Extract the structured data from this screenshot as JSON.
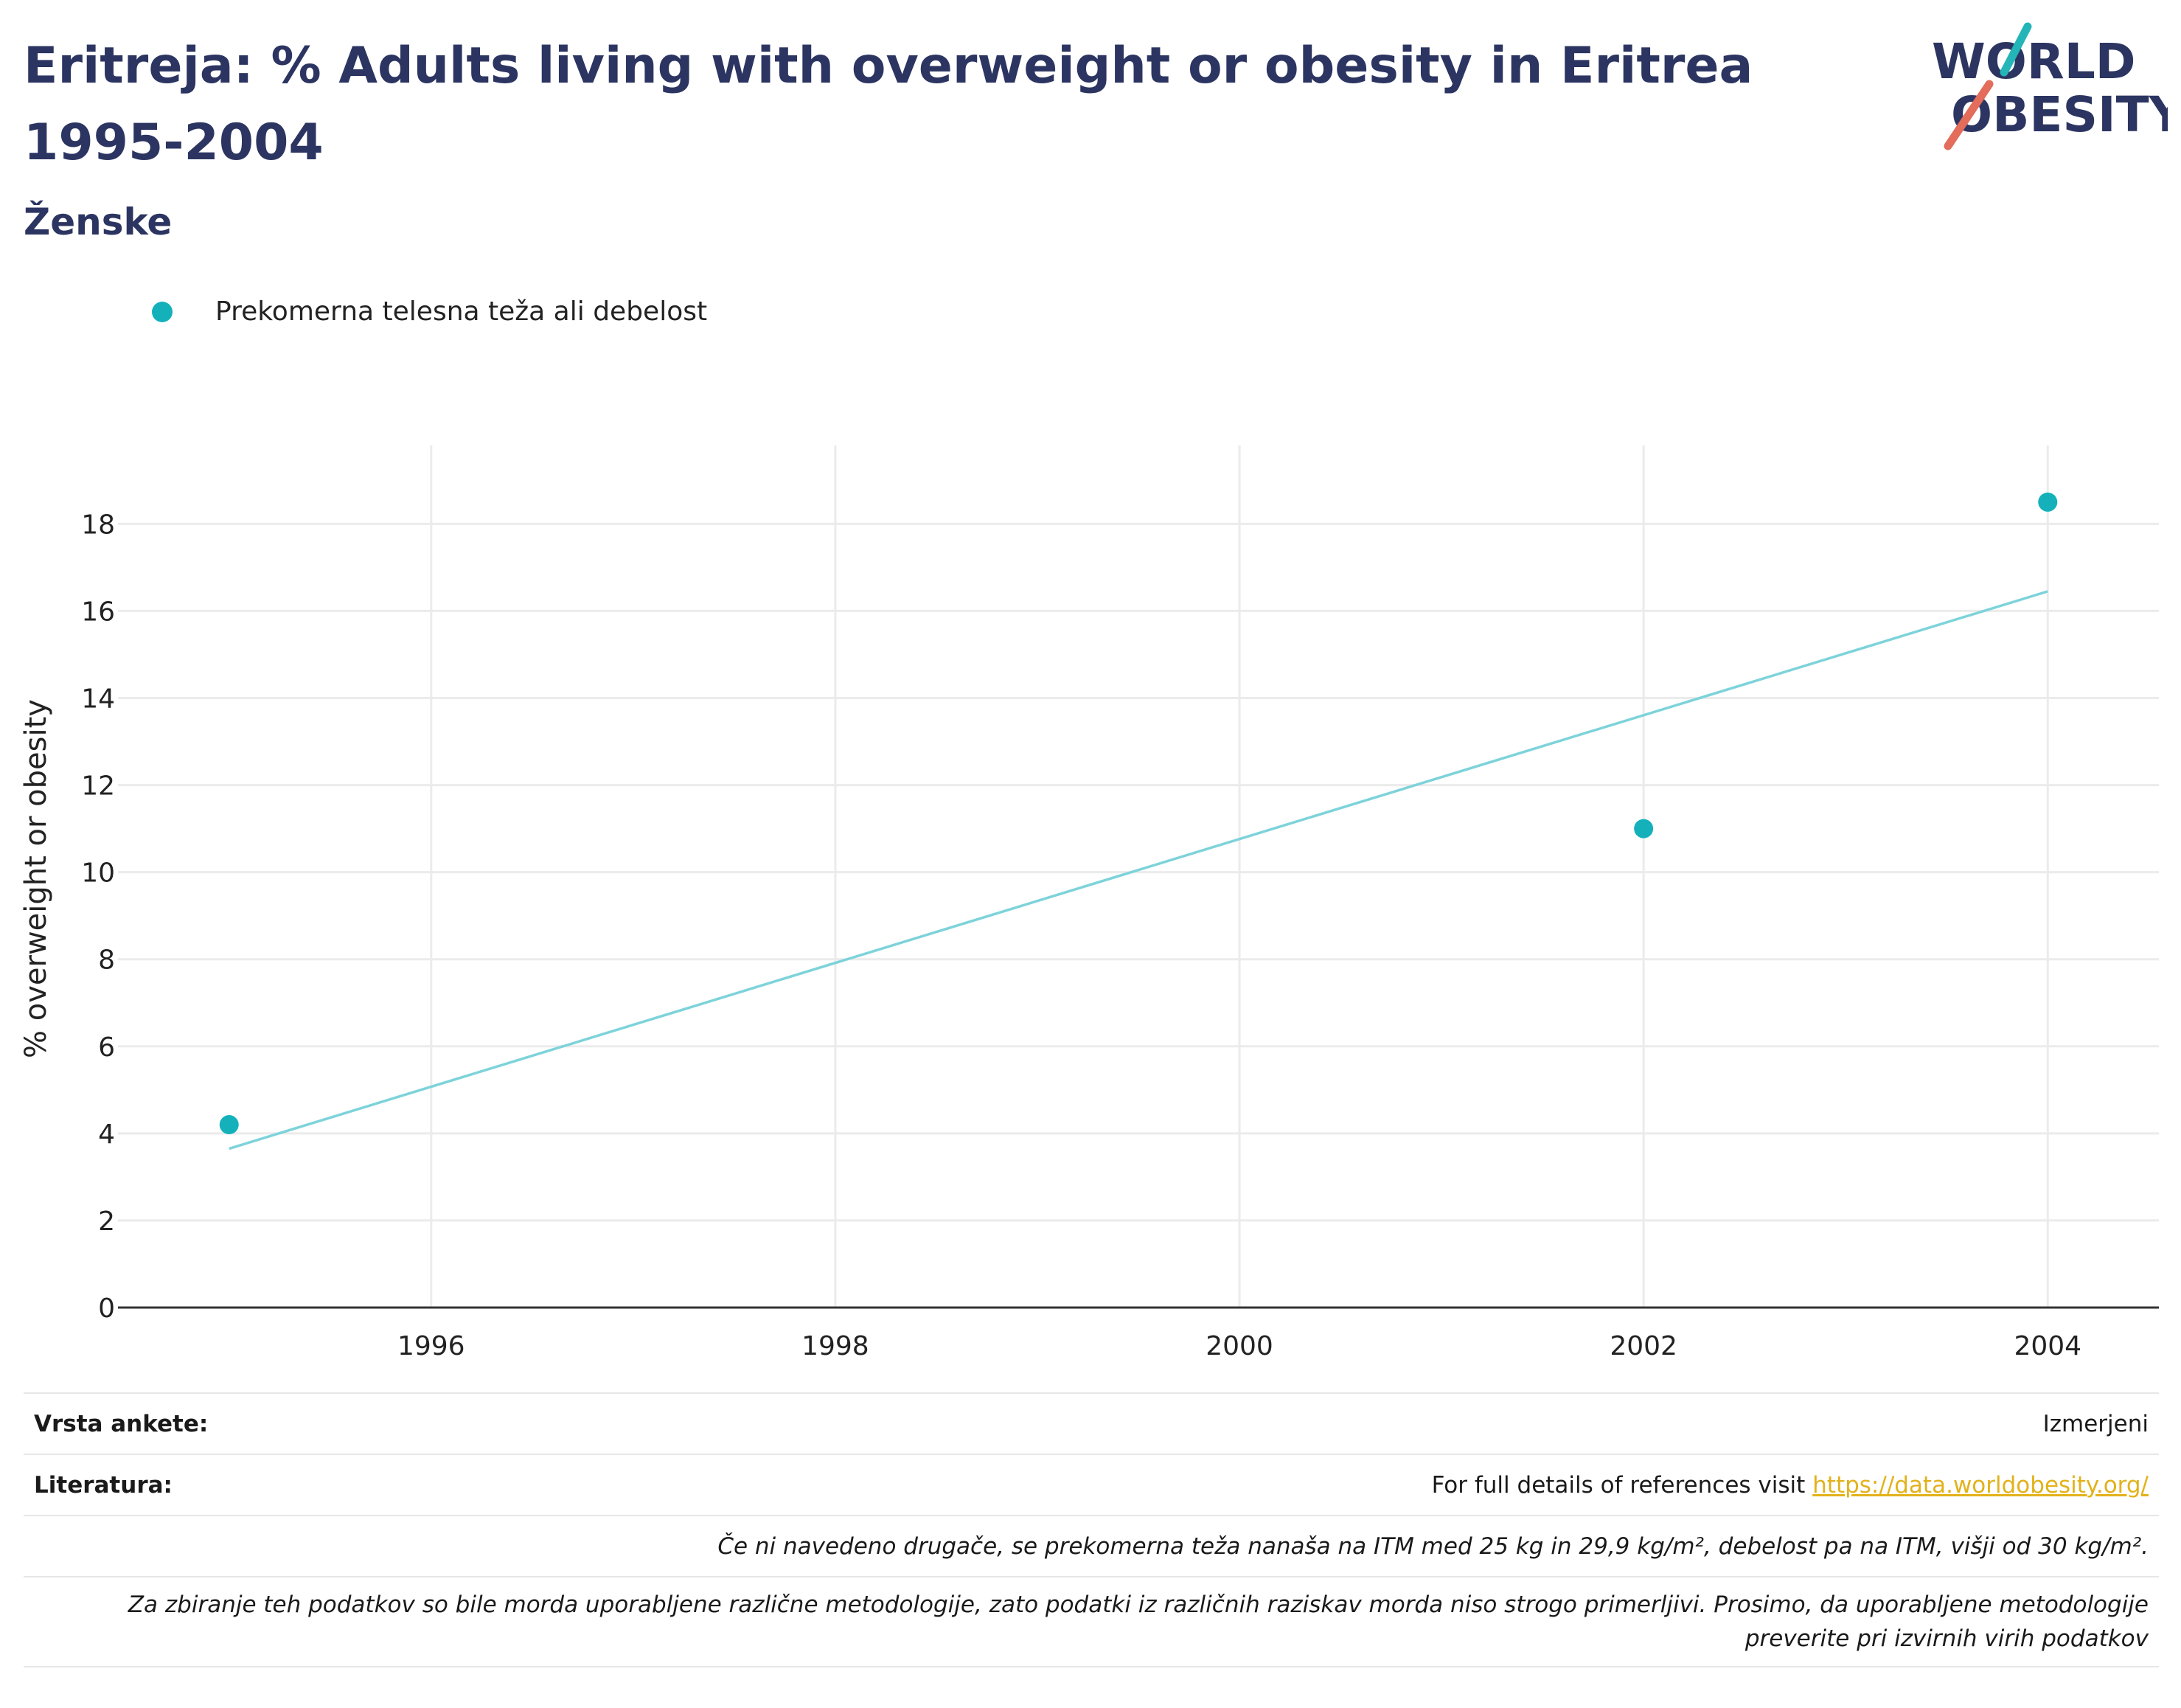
{
  "header": {
    "title": "Eritreja: % Adults living with overweight or obesity in Eritrea 1995-2004",
    "subtitle": "Ženske"
  },
  "logo": {
    "line1": "WORLD",
    "line2": "OBESITY"
  },
  "legend": {
    "label": "Prekomerna telesna teža ali debelost",
    "color": "#14b1bb"
  },
  "chart_data": {
    "type": "scatter",
    "title": "Eritreja: % Adults living with overweight or obesity in Eritrea 1995-2004",
    "subtitle": "Ženske",
    "xlabel": "",
    "ylabel": "% overweight or obesity",
    "xlim": [
      1994.45,
      2004.55
    ],
    "ylim": [
      0,
      19.7
    ],
    "xticks": [
      1996,
      1998,
      2000,
      2002,
      2004
    ],
    "yticks": [
      0,
      2,
      4,
      6,
      8,
      10,
      12,
      14,
      16,
      18
    ],
    "grid": true,
    "legend_position": "top-left",
    "series": [
      {
        "name": "Prekomerna telesna teža ali debelost",
        "color": "#14b1bb",
        "x": [
          1995,
          2002,
          2004
        ],
        "y": [
          4.2,
          11.0,
          18.5
        ]
      }
    ],
    "trendline": {
      "color": "#7dd3da",
      "x": [
        1995,
        2004
      ],
      "y": [
        3.65,
        16.45
      ]
    }
  },
  "footer": {
    "survey_label": "Vrsta ankete:",
    "survey_value": "Izmerjeni",
    "refs_label": "Literatura:",
    "refs_text": "For full details of references visit",
    "refs_link": "https://data.worldobesity.org/",
    "note1": "Če ni navedeno drugače, se prekomerna teža nanaša na ITM med 25 kg in 29,9 kg/m², debelost pa na ITM, višji od 30 kg/m².",
    "note2": "Za zbiranje teh podatkov so bile morda uporabljene različne metodologije, zato podatki iz različnih raziskav morda niso strogo primerljivi. Prosimo, da uporabljene metodologije preverite pri izvirnih virih podatkov"
  }
}
